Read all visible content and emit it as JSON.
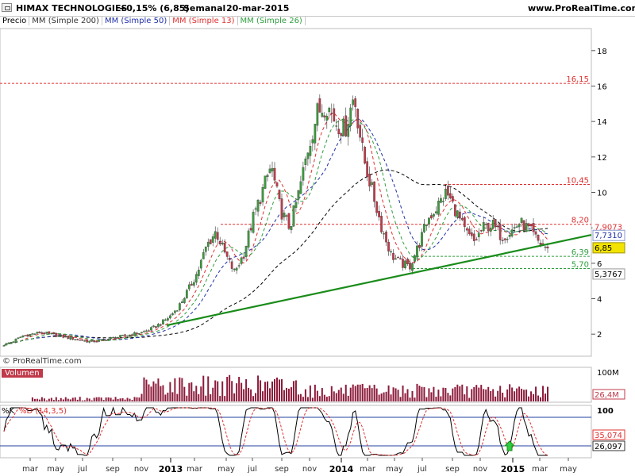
{
  "header": {
    "symbol": "HIMAX TECHNOLOGIES",
    "change": "+0,15% (6,85)",
    "period": "Semanal",
    "date": "20-mar-2015",
    "site": "www.ProRealTime.com"
  },
  "legend": {
    "price": "Precio",
    "ma200": "MM (Simple 200)",
    "ma50": "MM (Simple 50)",
    "ma13": "MM (Simple 13)",
    "ma26": "MM (Simple 26)"
  },
  "copyright": "© ProRealTime.com",
  "colors": {
    "up": "#3c9a3c",
    "down": "#c03a4a",
    "ma200": "#000000",
    "ma50": "#1f2ea8",
    "ma13": "#e03030",
    "ma26": "#2e9e3e",
    "trendline": "#1a8c1a",
    "hline_red": "#e03030",
    "hline_green": "#2e9e3e",
    "volume": "#8c1a3a"
  },
  "chart_data": [
    {
      "type": "candlestick",
      "pane": "price",
      "x_axis": {
        "months": [
          "mar",
          "may",
          "jul",
          "sep",
          "nov",
          "mar",
          "may",
          "jul",
          "sep",
          "nov",
          "mar",
          "may",
          "jul",
          "sep",
          "nov",
          "mar",
          "may"
        ],
        "years": [
          "2013",
          "2014",
          "2015"
        ]
      },
      "y_axis": {
        "ticks": [
          2,
          4,
          6,
          8,
          10,
          12,
          14,
          16,
          18
        ],
        "ylim": [
          0.8,
          19.2
        ]
      },
      "close_path": [
        1.4,
        1.6,
        1.9,
        2.0,
        2.1,
        2.0,
        1.9,
        1.8,
        1.7,
        1.6,
        1.6,
        1.7,
        1.8,
        1.9,
        2.0,
        2.1,
        2.3,
        2.6,
        3.0,
        3.6,
        4.5,
        5.5,
        7.0,
        7.8,
        6.5,
        5.5,
        6.5,
        8.5,
        10.0,
        11.5,
        9.0,
        8.0,
        10.0,
        12.5,
        14.5,
        15.0,
        14.0,
        13.5,
        15.5,
        12.0,
        10.0,
        8.0,
        6.5,
        6.0,
        5.8,
        7.0,
        8.5,
        9.2,
        10.0,
        9.0,
        7.8,
        7.2,
        8.0,
        8.2,
        7.5,
        7.8,
        8.3,
        7.9,
        7.2,
        6.85
      ],
      "moving_averages": {
        "ma200_last": "5,3767",
        "ma50_last": "7,7310",
        "ma13_last": "7,9073"
      },
      "levels": [
        {
          "label": "16,15",
          "value": 16.15,
          "color": "red"
        },
        {
          "label": "10,45",
          "value": 10.45,
          "color": "red"
        },
        {
          "label": "8,20",
          "value": 8.2,
          "color": "red"
        },
        {
          "label": "6,39",
          "value": 6.39,
          "color": "green"
        },
        {
          "label": "5,70",
          "value": 5.7,
          "color": "green"
        }
      ],
      "last_price": "6,85",
      "trendline": {
        "from": 2.5,
        "to": 7.6
      }
    },
    {
      "type": "bar",
      "pane": "volume",
      "title": "Volumen",
      "y_axis": {
        "top_label": "100M"
      },
      "last_value": "26,4M"
    },
    {
      "type": "line",
      "pane": "stochastic",
      "title_k": "%K",
      "title_d": "%D (14,3,5)",
      "y_axis": {
        "top_label": "100"
      },
      "series": [
        {
          "name": "%K",
          "last_value": "26,097"
        },
        {
          "name": "%D (14,3,5)",
          "last_value": "35,074"
        }
      ]
    }
  ]
}
